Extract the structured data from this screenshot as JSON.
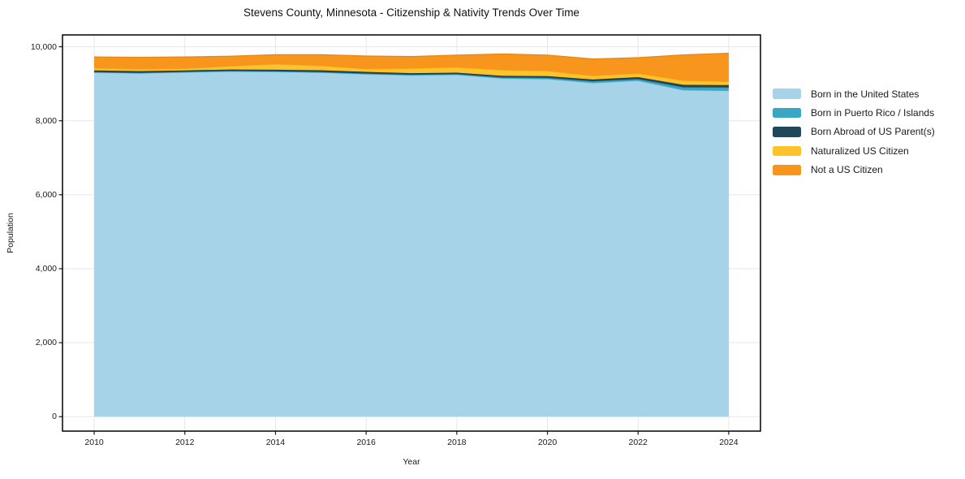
{
  "colors": {
    "background": "#ffffff",
    "grid": "#e7e7e7",
    "axis_border": "#000000",
    "tick": "#1a1a1a",
    "text": "#1a1a1a"
  },
  "chart_data": {
    "type": "area",
    "stacked": true,
    "title": "Stevens County, Minnesota - Citizenship & Nativity Trends Over Time",
    "xlabel": "Year",
    "ylabel": "Population",
    "x": [
      2010,
      2011,
      2012,
      2013,
      2014,
      2015,
      2016,
      2017,
      2018,
      2019,
      2020,
      2021,
      2022,
      2023,
      2024
    ],
    "series": [
      {
        "name": "Born in the United States",
        "color": "#a7d3e8",
        "edge": "#8cc3dd",
        "values": [
          9300,
          9280,
          9305,
          9330,
          9320,
          9300,
          9255,
          9225,
          9240,
          9140,
          9125,
          9020,
          9080,
          8825,
          8810
        ]
      },
      {
        "name": "Born in Puerto Rico / Islands",
        "color": "#3ba6c4",
        "edge": "#2e93b0",
        "values": [
          15,
          15,
          15,
          15,
          15,
          15,
          20,
          20,
          20,
          30,
          35,
          45,
          45,
          80,
          90
        ]
      },
      {
        "name": "Born Abroad of US Parent(s)",
        "color": "#20475a",
        "edge": "#16394a",
        "values": [
          45,
          45,
          40,
          40,
          45,
          50,
          45,
          40,
          40,
          45,
          45,
          50,
          55,
          65,
          65
        ]
      },
      {
        "name": "Naturalized US Citizen",
        "color": "#fdc32d",
        "edge": "#edb01a",
        "values": [
          60,
          55,
          50,
          90,
          150,
          120,
          80,
          130,
          145,
          155,
          140,
          100,
          100,
          115,
          95
        ]
      },
      {
        "name": "Not a US Citizen",
        "color": "#f8951d",
        "edge": "#e9850e",
        "values": [
          305,
          320,
          315,
          270,
          255,
          300,
          350,
          320,
          330,
          435,
          430,
          455,
          425,
          695,
          765
        ]
      }
    ],
    "xlim": [
      2009.3,
      2024.7
    ],
    "ylim": [
      -390,
      10320
    ],
    "xticks": {
      "values": [
        2010,
        2012,
        2014,
        2016,
        2018,
        2020,
        2022,
        2024
      ],
      "labels": [
        "2010",
        "2012",
        "2014",
        "2016",
        "2018",
        "2020",
        "2022",
        "2024"
      ]
    },
    "yticks": {
      "values": [
        0,
        2000,
        4000,
        6000,
        8000,
        10000
      ],
      "labels": [
        "0",
        "2,000",
        "4,000",
        "6,000",
        "8,000",
        "10,000"
      ]
    },
    "grid": true,
    "legend_position": "right"
  }
}
